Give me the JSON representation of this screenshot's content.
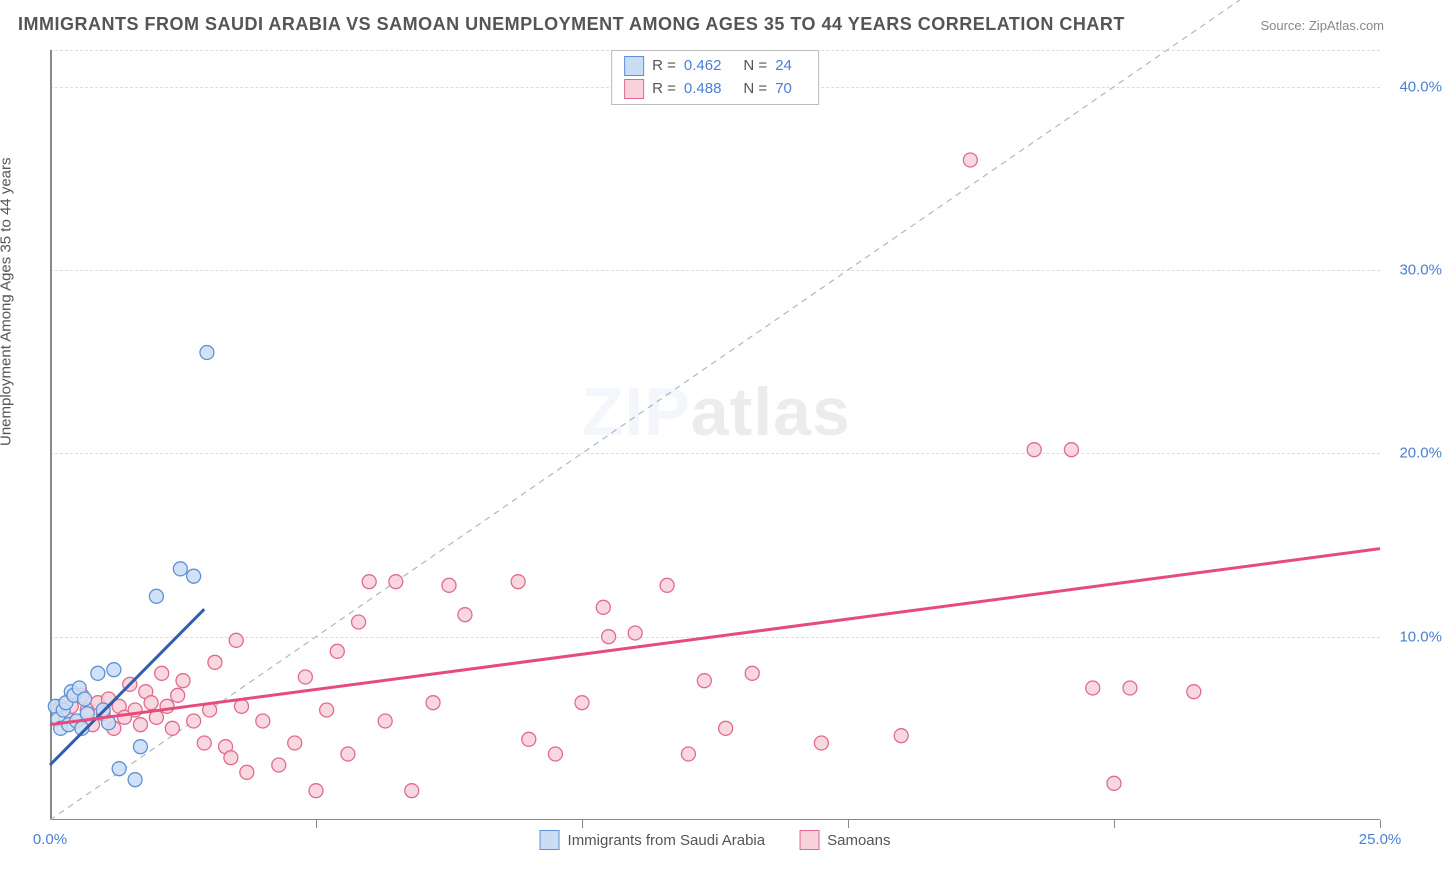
{
  "title": "IMMIGRANTS FROM SAUDI ARABIA VS SAMOAN UNEMPLOYMENT AMONG AGES 35 TO 44 YEARS CORRELATION CHART",
  "source": "Source: ZipAtlas.com",
  "y_axis_label": "Unemployment Among Ages 35 to 44 years",
  "watermark_zip": "ZIP",
  "watermark_atlas": "atlas",
  "chart": {
    "type": "scatter",
    "background_color": "#ffffff",
    "grid_color": "#dddddd",
    "axis_color": "#888888",
    "text_color": "#555555",
    "value_color": "#4a7fd6",
    "xlim": [
      0,
      25
    ],
    "ylim": [
      0,
      42
    ],
    "x_ticks": [
      5,
      10,
      15,
      20,
      25
    ],
    "x_tick_labels": {
      "left": "0.0%",
      "right": "25.0%"
    },
    "y_ticks": [
      10,
      20,
      30,
      40
    ],
    "y_tick_labels": [
      "10.0%",
      "20.0%",
      "30.0%",
      "40.0%"
    ],
    "diagonal_line": {
      "color": "#aab8d0",
      "dash": "6,5",
      "width": 1.2,
      "from": [
        0,
        0
      ],
      "to": [
        25,
        50
      ]
    },
    "series": [
      {
        "name": "Immigrants from Saudi Arabia",
        "fill": "#c9ddf4",
        "stroke": "#5f91d6",
        "marker_radius": 7,
        "R": "0.462",
        "N": "24",
        "trend": {
          "from": [
            0,
            3.0
          ],
          "to": [
            2.9,
            11.5
          ],
          "color": "#2f5fb0",
          "width": 3
        },
        "points": [
          [
            0.1,
            6.2
          ],
          [
            0.15,
            5.5
          ],
          [
            0.2,
            5.0
          ],
          [
            0.25,
            6.0
          ],
          [
            0.3,
            6.4
          ],
          [
            0.35,
            5.2
          ],
          [
            0.4,
            7.0
          ],
          [
            0.45,
            6.8
          ],
          [
            0.5,
            5.4
          ],
          [
            0.55,
            7.2
          ],
          [
            0.6,
            5.0
          ],
          [
            0.65,
            6.6
          ],
          [
            0.7,
            5.8
          ],
          [
            0.9,
            8.0
          ],
          [
            1.0,
            6.0
          ],
          [
            1.1,
            5.3
          ],
          [
            1.3,
            2.8
          ],
          [
            1.6,
            2.2
          ],
          [
            1.7,
            4.0
          ],
          [
            2.0,
            12.2
          ],
          [
            2.45,
            13.7
          ],
          [
            2.7,
            13.3
          ],
          [
            2.95,
            25.5
          ],
          [
            1.2,
            8.2
          ]
        ]
      },
      {
        "name": "Samoans",
        "fill": "#f7d1db",
        "stroke": "#e36a8e",
        "marker_radius": 7,
        "R": "0.488",
        "N": "70",
        "trend": {
          "from": [
            0,
            5.2
          ],
          "to": [
            25,
            14.8
          ],
          "color": "#e64c7b",
          "width": 3
        },
        "points": [
          [
            0.2,
            6.2
          ],
          [
            0.3,
            5.6
          ],
          [
            0.4,
            6.2
          ],
          [
            0.5,
            5.4
          ],
          [
            0.6,
            6.8
          ],
          [
            0.7,
            6.0
          ],
          [
            0.8,
            5.2
          ],
          [
            0.9,
            6.4
          ],
          [
            1.0,
            5.8
          ],
          [
            1.1,
            6.6
          ],
          [
            1.2,
            5.0
          ],
          [
            1.3,
            6.2
          ],
          [
            1.4,
            5.6
          ],
          [
            1.5,
            7.4
          ],
          [
            1.6,
            6.0
          ],
          [
            1.7,
            5.2
          ],
          [
            1.8,
            7.0
          ],
          [
            1.9,
            6.4
          ],
          [
            2.0,
            5.6
          ],
          [
            2.1,
            8.0
          ],
          [
            2.2,
            6.2
          ],
          [
            2.3,
            5.0
          ],
          [
            2.4,
            6.8
          ],
          [
            2.5,
            7.6
          ],
          [
            2.7,
            5.4
          ],
          [
            2.9,
            4.2
          ],
          [
            3.0,
            6.0
          ],
          [
            3.1,
            8.6
          ],
          [
            3.3,
            4.0
          ],
          [
            3.4,
            3.4
          ],
          [
            3.5,
            9.8
          ],
          [
            3.6,
            6.2
          ],
          [
            3.7,
            2.6
          ],
          [
            4.0,
            5.4
          ],
          [
            4.3,
            3.0
          ],
          [
            4.6,
            4.2
          ],
          [
            5.0,
            1.6
          ],
          [
            5.2,
            6.0
          ],
          [
            5.4,
            9.2
          ],
          [
            5.6,
            3.6
          ],
          [
            5.8,
            10.8
          ],
          [
            6.3,
            5.4
          ],
          [
            6.5,
            13.0
          ],
          [
            6.8,
            1.6
          ],
          [
            7.2,
            6.4
          ],
          [
            7.5,
            12.8
          ],
          [
            8.8,
            13.0
          ],
          [
            9.0,
            4.4
          ],
          [
            9.5,
            3.6
          ],
          [
            10.0,
            6.4
          ],
          [
            10.4,
            11.6
          ],
          [
            10.5,
            10.0
          ],
          [
            11.0,
            10.2
          ],
          [
            11.6,
            12.8
          ],
          [
            12.0,
            3.6
          ],
          [
            12.3,
            7.6
          ],
          [
            12.7,
            5.0
          ],
          [
            13.2,
            8.0
          ],
          [
            14.5,
            4.2
          ],
          [
            16.0,
            4.6
          ],
          [
            17.3,
            36.0
          ],
          [
            18.5,
            20.2
          ],
          [
            19.2,
            20.2
          ],
          [
            19.6,
            7.2
          ],
          [
            20.3,
            7.2
          ],
          [
            20.0,
            2.0
          ],
          [
            21.5,
            7.0
          ],
          [
            4.8,
            7.8
          ],
          [
            7.8,
            11.2
          ],
          [
            6.0,
            13.0
          ]
        ]
      }
    ]
  }
}
